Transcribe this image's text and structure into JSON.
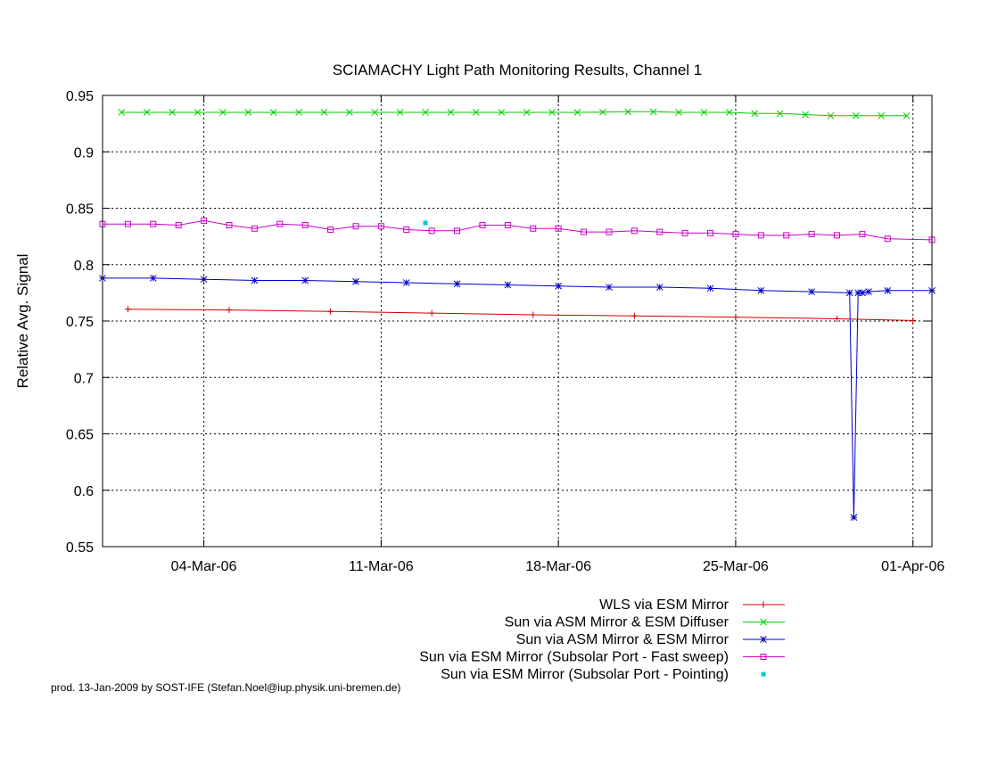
{
  "chart_data": {
    "type": "line",
    "title": "SCIAMACHY Light Path Monitoring Results, Channel 1",
    "ylabel": "Relative Avg. Signal",
    "xlabel": "",
    "xlim": [
      "2006-02-28T00:00",
      "2006-04-01T18:00"
    ],
    "ylim": [
      0.55,
      0.95
    ],
    "yticks": [
      0.55,
      0.6,
      0.65,
      0.7,
      0.75,
      0.8,
      0.85,
      0.9,
      0.95
    ],
    "ytick_labels": [
      "0.55",
      "0.6",
      "0.65",
      "0.7",
      "0.75",
      "0.8",
      "0.85",
      "0.9",
      "0.95"
    ],
    "xticks": [
      "2006-03-04",
      "2006-03-11",
      "2006-03-18",
      "2006-03-25",
      "2006-04-01"
    ],
    "xtick_labels": [
      "04-Mar-06",
      "11-Mar-06",
      "18-Mar-06",
      "25-Mar-06",
      "01-Apr-06"
    ],
    "grid": true,
    "legend_position": "below",
    "series": [
      {
        "name": "WLS via ESM Mirror",
        "color": "#cc0000",
        "marker": "plus",
        "x": [
          "2006-03-01",
          "2006-03-05",
          "2006-03-09",
          "2006-03-13",
          "2006-03-17",
          "2006-03-21",
          "2006-03-25",
          "2006-03-29",
          "2006-04-01"
        ],
        "y": [
          0.7605,
          0.7598,
          0.7585,
          0.757,
          0.7555,
          0.7545,
          0.7535,
          0.752,
          0.7505
        ]
      },
      {
        "name": "Sun via ASM Mirror & ESM Diffuser",
        "color": "#00cc00",
        "marker": "cross",
        "x": [
          "2006-02-28T18:00",
          "2006-03-01T18:00",
          "2006-03-02T18:00",
          "2006-03-03T18:00",
          "2006-03-04T18:00",
          "2006-03-05T18:00",
          "2006-03-06T18:00",
          "2006-03-07T18:00",
          "2006-03-08T18:00",
          "2006-03-09T18:00",
          "2006-03-10T18:00",
          "2006-03-11T18:00",
          "2006-03-12T18:00",
          "2006-03-13T18:00",
          "2006-03-14T18:00",
          "2006-03-15T18:00",
          "2006-03-16T18:00",
          "2006-03-17T18:00",
          "2006-03-18T18:00",
          "2006-03-19T18:00",
          "2006-03-20T18:00",
          "2006-03-21T18:00",
          "2006-03-22T18:00",
          "2006-03-23T18:00",
          "2006-03-24T18:00",
          "2006-03-25T18:00",
          "2006-03-26T18:00",
          "2006-03-27T18:00",
          "2006-03-28T18:00",
          "2006-03-29T18:00",
          "2006-03-30T18:00",
          "2006-03-31T18:00"
        ],
        "y": [
          0.935,
          0.935,
          0.935,
          0.935,
          0.935,
          0.935,
          0.935,
          0.935,
          0.935,
          0.935,
          0.935,
          0.935,
          0.935,
          0.935,
          0.935,
          0.935,
          0.935,
          0.935,
          0.935,
          0.9352,
          0.9355,
          0.9355,
          0.935,
          0.935,
          0.935,
          0.934,
          0.934,
          0.933,
          0.932,
          0.932,
          0.932,
          0.932
        ]
      },
      {
        "name": "Sun via ASM Mirror & ESM Mirror",
        "color": "#0000cc",
        "marker": "star",
        "x": [
          "2006-02-28T00:00",
          "2006-03-02",
          "2006-03-04",
          "2006-03-06",
          "2006-03-08",
          "2006-03-10",
          "2006-03-12",
          "2006-03-14",
          "2006-03-16",
          "2006-03-18",
          "2006-03-20",
          "2006-03-22",
          "2006-03-24",
          "2006-03-26",
          "2006-03-28",
          "2006-03-29T12:00",
          "2006-03-29T16:00",
          "2006-03-29T20:00",
          "2006-03-30T00:00",
          "2006-03-30T06:00",
          "2006-03-31",
          "2006-04-01T18:00"
        ],
        "y": [
          0.788,
          0.788,
          0.787,
          0.786,
          0.786,
          0.785,
          0.784,
          0.783,
          0.782,
          0.781,
          0.78,
          0.78,
          0.779,
          0.777,
          0.776,
          0.775,
          0.576,
          0.775,
          0.775,
          0.776,
          0.777,
          0.777
        ]
      },
      {
        "name": "Sun via ESM Mirror (Subsolar Port - Fast sweep)",
        "color": "#cc00cc",
        "marker": "square",
        "x": [
          "2006-02-28T00:00",
          "2006-03-01",
          "2006-03-02",
          "2006-03-03",
          "2006-03-04",
          "2006-03-05",
          "2006-03-06",
          "2006-03-07",
          "2006-03-08",
          "2006-03-09",
          "2006-03-10",
          "2006-03-11",
          "2006-03-12",
          "2006-03-13",
          "2006-03-14",
          "2006-03-15",
          "2006-03-16",
          "2006-03-17",
          "2006-03-18",
          "2006-03-19",
          "2006-03-20",
          "2006-03-21",
          "2006-03-22",
          "2006-03-23",
          "2006-03-24",
          "2006-03-25",
          "2006-03-26",
          "2006-03-27",
          "2006-03-28",
          "2006-03-29",
          "2006-03-30",
          "2006-03-31",
          "2006-04-01T18:00"
        ],
        "y": [
          0.836,
          0.836,
          0.836,
          0.835,
          0.839,
          0.835,
          0.832,
          0.836,
          0.835,
          0.831,
          0.834,
          0.834,
          0.831,
          0.83,
          0.83,
          0.835,
          0.835,
          0.832,
          0.832,
          0.829,
          0.829,
          0.83,
          0.829,
          0.828,
          0.828,
          0.827,
          0.826,
          0.826,
          0.827,
          0.826,
          0.827,
          0.823,
          0.822
        ]
      },
      {
        "name": "Sun via ESM Mirror (Subsolar Port - Pointing)",
        "color": "#00cccc",
        "marker": "dot",
        "x": [
          "2006-03-12T18:00"
        ],
        "y": [
          0.837
        ]
      }
    ]
  },
  "footer": {
    "credit": "prod. 13-Jan-2009 by SOST-IFE (Stefan.Noel@iup.physik.uni-bremen.de)"
  }
}
